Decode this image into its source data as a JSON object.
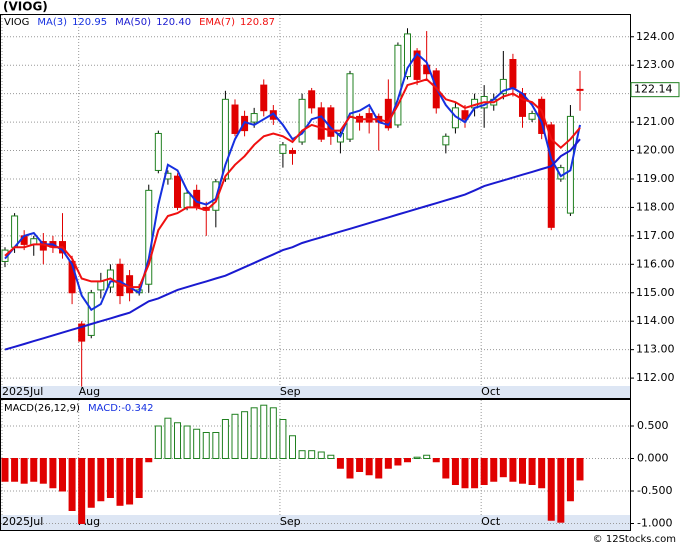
{
  "chart_data": [
    {
      "type": "candlestick",
      "title": "(VIOG)",
      "symbol": "VIOG",
      "categories": [
        "2025Jul",
        null,
        null,
        null,
        null,
        null,
        null,
        null,
        "Aug",
        null,
        null,
        null,
        null,
        null,
        null,
        null,
        null,
        null,
        null,
        null,
        null,
        null,
        null,
        null,
        null,
        null,
        null,
        null,
        null,
        "Sep",
        null,
        null,
        null,
        null,
        null,
        null,
        null,
        null,
        null,
        null,
        null,
        null,
        null,
        null,
        null,
        null,
        null,
        null,
        null,
        null,
        "Oct",
        null,
        null,
        null,
        null,
        null,
        null,
        null,
        null,
        null,
        null
      ],
      "open": [
        116.1,
        116.6,
        117.0,
        116.7,
        116.8,
        116.8,
        116.8,
        116.1,
        113.9,
        113.5,
        115.1,
        115.2,
        116.0,
        115.6,
        115.0,
        115.3,
        119.3,
        119.0,
        119.1,
        118.0,
        118.6,
        118.0,
        117.9,
        119.0,
        121.6,
        121.2,
        121.0,
        122.3,
        121.4,
        119.9,
        120.0,
        120.3,
        122.1,
        121.5,
        121.5,
        120.3,
        120.4,
        121.2,
        121.3,
        121.2,
        121.8,
        120.9,
        122.6,
        123.5,
        123.0,
        122.8,
        120.2,
        120.8,
        121.4,
        121.5,
        121.5,
        121.6,
        122.0,
        123.2,
        122.0,
        121.1,
        121.8,
        120.9,
        119.0,
        117.8,
        122.15
      ],
      "high": [
        116.6,
        117.8,
        117.2,
        117.0,
        117.1,
        117.0,
        117.8,
        116.3,
        114.0,
        115.1,
        115.7,
        116.0,
        116.2,
        115.8,
        115.3,
        118.8,
        120.7,
        119.3,
        119.2,
        118.6,
        118.8,
        118.2,
        119.0,
        122.1,
        121.8,
        121.4,
        121.5,
        122.5,
        121.6,
        120.3,
        120.1,
        122.0,
        122.2,
        121.7,
        121.6,
        120.7,
        122.8,
        121.3,
        121.5,
        121.3,
        122.5,
        123.8,
        124.3,
        123.6,
        124.2,
        122.9,
        120.6,
        121.7,
        121.6,
        122.0,
        122.3,
        122.0,
        123.5,
        123.4,
        122.2,
        121.4,
        121.9,
        121.0,
        119.5,
        121.6,
        122.8
      ],
      "low": [
        115.9,
        116.4,
        116.5,
        116.3,
        116.0,
        116.4,
        116.2,
        114.6,
        111.7,
        113.4,
        114.8,
        115.0,
        114.6,
        114.7,
        114.9,
        115.0,
        119.2,
        118.8,
        117.9,
        117.9,
        117.9,
        117.0,
        117.3,
        118.9,
        120.5,
        120.5,
        120.8,
        121.2,
        120.9,
        119.4,
        119.5,
        120.2,
        121.3,
        120.3,
        120.2,
        119.9,
        120.3,
        120.7,
        120.6,
        120.0,
        120.7,
        120.8,
        122.5,
        122.3,
        122.5,
        121.3,
        119.9,
        120.6,
        120.8,
        121.2,
        120.8,
        121.4,
        121.8,
        121.9,
        120.8,
        121.0,
        120.4,
        117.2,
        118.9,
        117.7,
        121.4
      ],
      "close": [
        116.5,
        117.7,
        116.7,
        116.9,
        116.5,
        116.6,
        116.4,
        115.0,
        113.3,
        115.0,
        115.4,
        115.8,
        114.9,
        115.0,
        115.1,
        118.6,
        120.6,
        119.2,
        118.0,
        118.5,
        118.0,
        117.9,
        118.9,
        121.8,
        120.6,
        120.7,
        121.3,
        121.4,
        121.1,
        120.2,
        119.9,
        121.8,
        121.5,
        120.4,
        120.5,
        120.6,
        122.7,
        121.0,
        121.0,
        121.0,
        120.8,
        123.7,
        124.1,
        122.5,
        122.7,
        121.5,
        120.5,
        121.5,
        121.1,
        121.8,
        121.9,
        121.8,
        122.5,
        122.2,
        121.2,
        121.3,
        120.6,
        117.3,
        119.4,
        121.2,
        122.14
      ],
      "up_color": "#208020",
      "down_color": "#e00000",
      "series": [
        {
          "name": "MA(3)",
          "legend_value": "120.95",
          "color": "#1530e0",
          "width": 2,
          "values": [
            116.2,
            116.6,
            117.0,
            117.1,
            116.7,
            116.7,
            116.5,
            116.0,
            114.9,
            114.4,
            114.6,
            115.4,
            115.4,
            115.2,
            115.0,
            116.2,
            118.1,
            119.5,
            119.3,
            118.6,
            118.2,
            118.1,
            118.3,
            119.5,
            120.4,
            121.0,
            120.9,
            121.1,
            121.3,
            120.9,
            120.4,
            120.6,
            121.1,
            121.2,
            120.8,
            120.5,
            121.3,
            121.4,
            121.6,
            121.0,
            120.9,
            121.8,
            122.9,
            123.4,
            123.1,
            122.2,
            121.6,
            121.2,
            121.0,
            121.5,
            121.6,
            121.8,
            122.1,
            122.2,
            122.0,
            121.6,
            121.0,
            119.7,
            119.1,
            119.3,
            120.9
          ]
        },
        {
          "name": "MA(50)",
          "legend_value": "120.40",
          "color": "#1a1ad0",
          "width": 2,
          "values": [
            113.0,
            113.1,
            113.2,
            113.3,
            113.4,
            113.5,
            113.6,
            113.7,
            113.8,
            113.9,
            114.0,
            114.1,
            114.2,
            114.3,
            114.5,
            114.7,
            114.8,
            114.95,
            115.1,
            115.2,
            115.3,
            115.4,
            115.5,
            115.6,
            115.75,
            115.9,
            116.05,
            116.2,
            116.35,
            116.5,
            116.6,
            116.75,
            116.85,
            116.95,
            117.05,
            117.15,
            117.25,
            117.35,
            117.45,
            117.55,
            117.65,
            117.75,
            117.85,
            117.95,
            118.05,
            118.15,
            118.25,
            118.35,
            118.45,
            118.6,
            118.75,
            118.85,
            118.95,
            119.05,
            119.15,
            119.25,
            119.35,
            119.45,
            119.8,
            120.0,
            120.4
          ]
        },
        {
          "name": "EMA(7)",
          "legend_value": "120.87",
          "color": "#f01010",
          "width": 2,
          "values": [
            116.3,
            116.6,
            116.6,
            116.7,
            116.7,
            116.6,
            116.6,
            116.2,
            115.5,
            115.4,
            115.4,
            115.5,
            115.3,
            115.2,
            115.2,
            116.0,
            117.2,
            117.7,
            117.8,
            118.0,
            118.0,
            117.9,
            118.2,
            119.1,
            119.5,
            119.8,
            120.2,
            120.5,
            120.6,
            120.5,
            120.3,
            120.7,
            120.9,
            120.8,
            120.7,
            120.7,
            121.2,
            121.1,
            121.1,
            121.1,
            121.0,
            121.6,
            122.3,
            122.4,
            122.5,
            122.2,
            121.8,
            121.7,
            121.5,
            121.6,
            121.7,
            121.7,
            121.9,
            122.0,
            121.8,
            121.7,
            121.4,
            120.4,
            120.1,
            120.4,
            120.8
          ]
        }
      ],
      "ylim": [
        111.3,
        124.8
      ],
      "yticks": [
        {
          "value": 112,
          "label": "112.00"
        },
        {
          "value": 113,
          "label": "113.00"
        },
        {
          "value": 114,
          "label": "114.00"
        },
        {
          "value": 115,
          "label": "115.00"
        },
        {
          "value": 116,
          "label": "116.00"
        },
        {
          "value": 117,
          "label": "117.00"
        },
        {
          "value": 118,
          "label": "118.00"
        },
        {
          "value": 119,
          "label": "119.00"
        },
        {
          "value": 120,
          "label": "120.00"
        },
        {
          "value": 121,
          "label": "121.00"
        },
        {
          "value": 122,
          "label": "122.00"
        },
        {
          "value": 123,
          "label": "123.00"
        },
        {
          "value": 124,
          "label": "124.00"
        }
      ],
      "grid": true
    },
    {
      "type": "bar",
      "title": "MACD(26,12,9)",
      "value_title": "MACD:",
      "value_text": "-0.342",
      "pos_color": "#208020",
      "neg_color": "#e00000",
      "values": [
        -0.35,
        -0.35,
        -0.38,
        -0.35,
        -0.38,
        -0.45,
        -0.5,
        -0.8,
        -1.0,
        -0.75,
        -0.65,
        -0.6,
        -0.72,
        -0.7,
        -0.6,
        -0.05,
        0.5,
        0.62,
        0.55,
        0.5,
        0.45,
        0.4,
        0.4,
        0.6,
        0.68,
        0.72,
        0.78,
        0.82,
        0.78,
        0.6,
        0.35,
        0.12,
        0.12,
        0.1,
        0.05,
        -0.15,
        -0.3,
        -0.2,
        -0.25,
        -0.3,
        -0.15,
        -0.1,
        -0.05,
        0.02,
        0.05,
        -0.05,
        -0.3,
        -0.4,
        -0.45,
        -0.45,
        -0.4,
        -0.35,
        -0.28,
        -0.35,
        -0.38,
        -0.4,
        -0.45,
        -0.95,
        -0.98,
        -0.65,
        -0.33
      ],
      "ylim": [
        -1.1,
        0.9
      ],
      "yticks": [
        {
          "value": 0.5,
          "label": "0.500"
        },
        {
          "value": 0,
          "label": "0.000"
        },
        {
          "value": -0.5,
          "label": "-0.500"
        },
        {
          "value": -1,
          "label": "-1.000"
        }
      ],
      "grid": true
    }
  ],
  "footer": "© 12Stocks.com"
}
